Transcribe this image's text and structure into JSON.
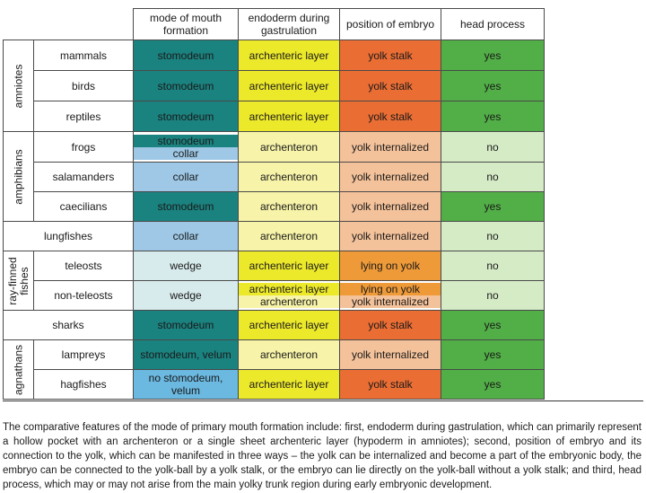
{
  "colors": {
    "stomodeum": "#1a827f",
    "collar": "#9ec8e6",
    "wedge": "#d8ebec",
    "stomodeum_velum": "#1a827f",
    "no_stomodeum": "#6bb8e0",
    "archenteric": "#ece82a",
    "archenteron": "#f7f3a8",
    "yolk_stalk": "#ea6d34",
    "yolk_internalized": "#f4c29a",
    "lying_on_yolk": "#ef9a38",
    "yes": "#52ae47",
    "no": "#d5ebc6"
  },
  "headers": {
    "mouth": "mode of mouth formation",
    "endoderm": "endoderm during gastrulation",
    "position": "position of embryo",
    "head": "head process"
  },
  "groups": {
    "amniotes": "amniotes",
    "amphibians": "amphibians",
    "rayfinned": "ray-finned fishes",
    "agnathans": "agnathans"
  },
  "rows": [
    {
      "name": "mammals",
      "mouth": [
        "stomodeum"
      ],
      "endoderm": [
        "archenteric layer"
      ],
      "position": [
        "yolk stalk"
      ],
      "head": "yes"
    },
    {
      "name": "birds",
      "mouth": [
        "stomodeum"
      ],
      "endoderm": [
        "archenteric layer"
      ],
      "position": [
        "yolk stalk"
      ],
      "head": "yes"
    },
    {
      "name": "reptiles",
      "mouth": [
        "stomodeum"
      ],
      "endoderm": [
        "archenteric layer"
      ],
      "position": [
        "yolk stalk"
      ],
      "head": "yes"
    },
    {
      "name": "frogs",
      "mouth": [
        "stomodeum",
        "collar"
      ],
      "endoderm": [
        "archenteron"
      ],
      "position": [
        "yolk internalized"
      ],
      "head": "no"
    },
    {
      "name": "salamanders",
      "mouth": [
        "collar"
      ],
      "endoderm": [
        "archenteron"
      ],
      "position": [
        "yolk internalized"
      ],
      "head": "no"
    },
    {
      "name": "caecilians",
      "mouth": [
        "stomodeum"
      ],
      "endoderm": [
        "archenteron"
      ],
      "position": [
        "yolk internalized"
      ],
      "head": "yes"
    },
    {
      "name": "lungfishes",
      "mouth": [
        "collar"
      ],
      "endoderm": [
        "archenteron"
      ],
      "position": [
        "yolk internalized"
      ],
      "head": "no"
    },
    {
      "name": "teleosts",
      "mouth": [
        "wedge"
      ],
      "endoderm": [
        "archenteric layer"
      ],
      "position": [
        "lying on yolk"
      ],
      "head": "no"
    },
    {
      "name": "non-teleosts",
      "mouth": [
        "wedge"
      ],
      "endoderm": [
        "archenteric layer",
        "archenteron"
      ],
      "position": [
        "lying on yolk",
        "yolk internalized"
      ],
      "head": "no"
    },
    {
      "name": "sharks",
      "mouth": [
        "stomodeum"
      ],
      "endoderm": [
        "archenteric layer"
      ],
      "position": [
        "yolk stalk"
      ],
      "head": "yes"
    },
    {
      "name": "lampreys",
      "mouth": [
        "stomodeum, velum"
      ],
      "endoderm": [
        "archenteron"
      ],
      "position": [
        "yolk internalized"
      ],
      "head": "yes"
    },
    {
      "name": "hagfishes",
      "mouth": [
        "no stomodeum, velum"
      ],
      "endoderm": [
        "archenteric layer"
      ],
      "position": [
        "yolk stalk"
      ],
      "head": "yes"
    }
  ],
  "caption": "The comparative features of the mode of primary mouth formation include: first, endoderm during gastrulation, which can primarily represent a hollow pocket with an archenteron or a single sheet archenteric layer (hypoderm in amniotes); second, position of embryo and its connection to the yolk, which can be manifested in three ways – the yolk can be internalized and become a part of the embryonic body, the embryo can be connected to the yolk-ball by a yolk stalk, or the embryo can lie directly on the yolk-ball without a yolk stalk; and third, head process, which may or may not arise from the main yolky trunk region during early embryonic development."
}
